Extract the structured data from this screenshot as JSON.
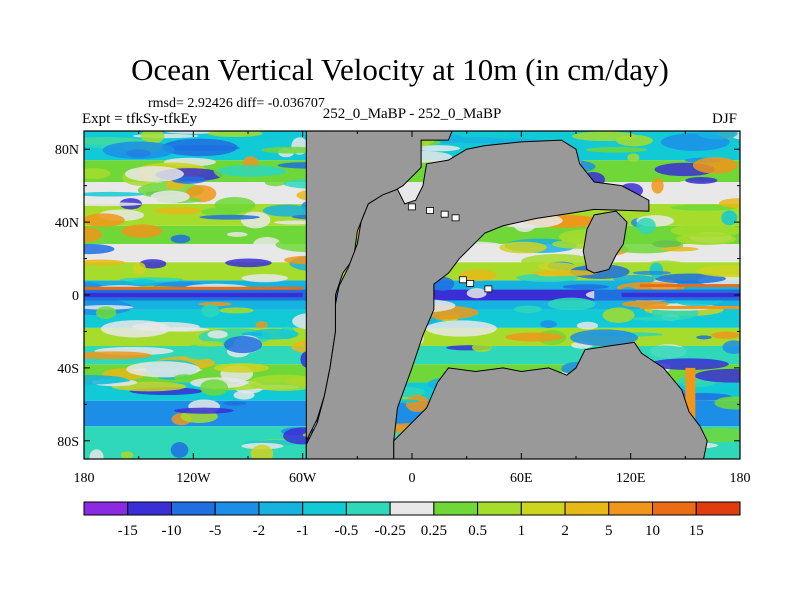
{
  "title": "Ocean Vertical Velocity at 10m (in cm/day)",
  "stats_line": "rmsd= 2.92426 diff= -0.036707",
  "experiment_label": "Expt = tfkSy-tfkEy",
  "cases_label": "252_0_MaBP - 252_0_MaBP",
  "season_label": "DJF",
  "lat_labels": [
    "80N",
    "40N",
    "0",
    "40S",
    "80S"
  ],
  "lat_values": [
    80,
    40,
    0,
    -40,
    -80
  ],
  "lon_labels": [
    "180",
    "120W",
    "60W",
    "0",
    "60E",
    "120E",
    "180"
  ],
  "lon_values": [
    -180,
    -120,
    -60,
    0,
    60,
    120,
    180
  ],
  "colorbar": {
    "colors": [
      "#8a2be2",
      "#3a2fd6",
      "#1f6fe0",
      "#1c8ee8",
      "#16b3e0",
      "#12c9d6",
      "#2ed8b8",
      "#e8e8e8",
      "#6fd838",
      "#a6dc2c",
      "#cfd41e",
      "#e8b818",
      "#f0961a",
      "#ec6c16",
      "#e03c0e"
    ],
    "labels": [
      "-15",
      "-10",
      "-5",
      "-2",
      "-1",
      "-0.5",
      "-0.25",
      "0.25",
      "0.5",
      "1",
      "2",
      "5",
      "10",
      "15"
    ]
  },
  "land_color": "#999999"
}
